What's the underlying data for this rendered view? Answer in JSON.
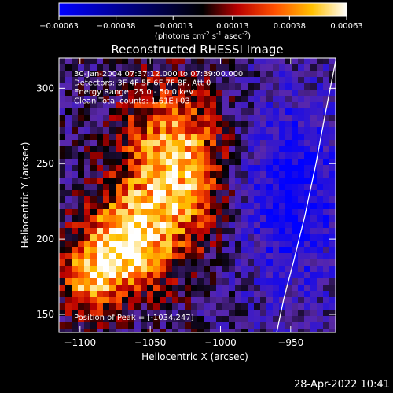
{
  "chart_data": {
    "type": "heatmap",
    "title": "Reconstructed RHESSI Image",
    "xlabel": "Heliocentric X (arcsec)",
    "ylabel": "Heliocentric Y (arcsec)",
    "xlim": [
      -1115,
      -918
    ],
    "ylim": [
      138,
      320
    ],
    "x_ticks": [
      -1100,
      -1050,
      -1000,
      -950
    ],
    "y_ticks": [
      150,
      200,
      250,
      300
    ],
    "x_tick_labels": [
      "-1100",
      "-1050",
      "-1000",
      "-950"
    ],
    "y_tick_labels": [
      "150",
      "200",
      "250",
      "300"
    ],
    "colorbar": {
      "ticks": [
        -0.00063,
        -0.00038,
        -0.00013,
        0.00013,
        0.00038,
        0.00063
      ],
      "tick_labels": [
        "-0.00063",
        "-0.00038",
        "-0.00013",
        "0.00013",
        "0.00038",
        "0.00063"
      ],
      "unit_prefix": "(photons cm",
      "unit_exp1": "-2",
      "unit_mid1": " s",
      "unit_exp2": "-1",
      "unit_mid2": " asec",
      "unit_exp3": "-2",
      "unit_suffix": ")"
    },
    "annotations": [
      "30-Jan-2004 07:37:12.000 to 07:39:00.000",
      "Detectors: 3F 4F 5F 6F 7F 8F, Att 0",
      "Energy Range: 25.0 - 50.0 keV",
      "Clean     Total counts: 1.61E+03"
    ],
    "peak_label": "Position of Peak = [-1034,247]",
    "peak": [
      -1034,
      247
    ],
    "vmin": -0.00063,
    "vmax": 0.00063,
    "limb_curve": [
      [
        -960,
        138
      ],
      [
        -955,
        160
      ],
      [
        -948,
        185
      ],
      [
        -940,
        215
      ],
      [
        -932,
        250
      ],
      [
        -925,
        285
      ],
      [
        -918,
        318
      ]
    ],
    "grid": false
  },
  "footer": {
    "timestamp": "28-Apr-2022 10:41"
  }
}
